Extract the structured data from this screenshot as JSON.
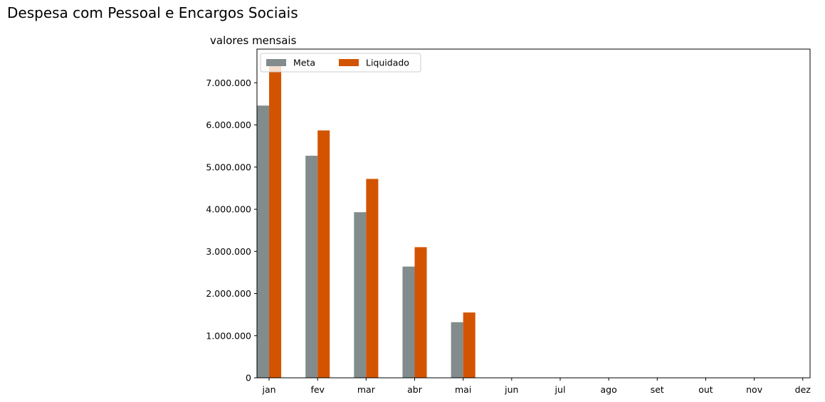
{
  "figure": {
    "title": "Despesa com Pessoal e Encargos Sociais"
  },
  "chart_data": {
    "type": "bar",
    "title": "valores mensais",
    "xlabel": "",
    "ylabel": "",
    "categories": [
      "jan",
      "fev",
      "mar",
      "abr",
      "mai",
      "jun",
      "jul",
      "ago",
      "set",
      "out",
      "nov",
      "dez"
    ],
    "series": [
      {
        "name": "Meta",
        "color": "#828C8C",
        "values": [
          6460000,
          5270000,
          3930000,
          2640000,
          1320000,
          0,
          0,
          0,
          0,
          0,
          0,
          0
        ]
      },
      {
        "name": "Liquidado",
        "color": "#D35400",
        "values": [
          7440000,
          5870000,
          4720000,
          3100000,
          1550000,
          0,
          0,
          0,
          0,
          0,
          0,
          0
        ]
      }
    ],
    "ylim": [
      0,
      7800000
    ],
    "yticks": [
      0,
      1000000,
      2000000,
      3000000,
      4000000,
      5000000,
      6000000,
      7000000
    ],
    "ytick_labels": [
      "0",
      "1.000.000",
      "2.000.000",
      "3.000.000",
      "4.000.000",
      "5.000.000",
      "6.000.000",
      "7.000.000"
    ],
    "grid": false,
    "legend_position": "top-left",
    "legend_columns": 2
  }
}
